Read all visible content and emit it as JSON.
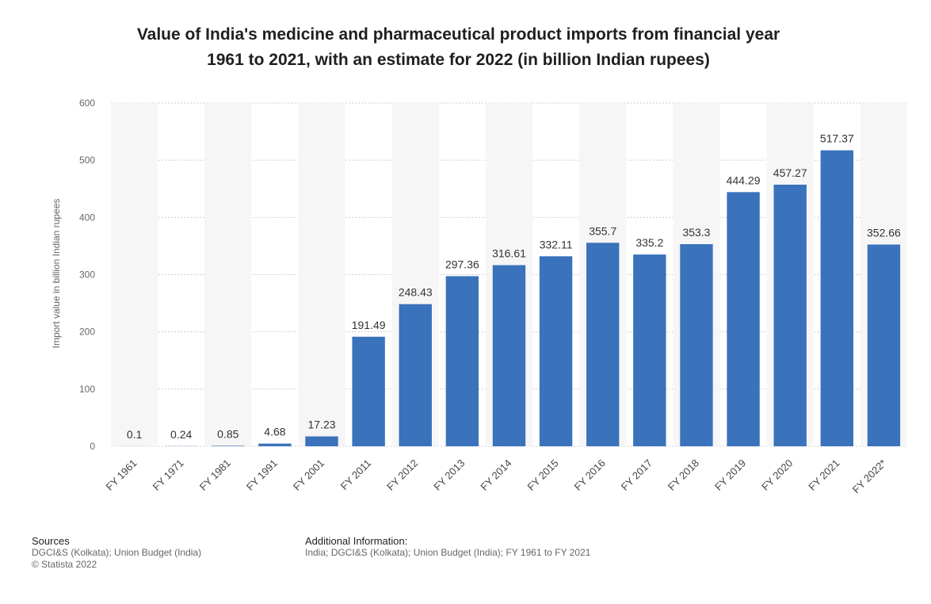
{
  "title_line1": "Value of India's medicine and pharmaceutical product imports from financial year",
  "title_line2": "1961 to 2021, with an estimate for 2022 (in billion Indian rupees)",
  "chart_data": {
    "type": "bar",
    "ylabel": "Import value in billion Indian rupees",
    "xlabel": "",
    "ylim": [
      0,
      600
    ],
    "yticks": [
      0,
      100,
      200,
      300,
      400,
      500,
      600
    ],
    "grid": true,
    "categories": [
      "FY 1961",
      "FY 1971",
      "FY 1981",
      "FY 1991",
      "FY 2001",
      "FY 2011",
      "FY 2012",
      "FY 2013",
      "FY 2014",
      "FY 2015",
      "FY 2016",
      "FY 2017",
      "FY 2018",
      "FY 2019",
      "FY 2020",
      "FY 2021",
      "FY 2022*"
    ],
    "values": [
      0.1,
      0.24,
      0.85,
      4.68,
      17.23,
      191.49,
      248.43,
      297.36,
      316.61,
      332.11,
      355.7,
      335.2,
      353.3,
      444.29,
      457.27,
      517.37,
      352.66
    ],
    "value_labels": [
      "0.1",
      "0.24",
      "0.85",
      "4.68",
      "17.23",
      "191.49",
      "248.43",
      "297.36",
      "316.61",
      "332.11",
      "355.7",
      "335.2",
      "353.3",
      "444.29",
      "457.27",
      "517.37",
      "352.66"
    ],
    "bar_color": "#3a72bb"
  },
  "footer": {
    "sources_heading": "Sources",
    "sources_line1": "DGCI&S (Kolkata); Union Budget (India)",
    "sources_line2": "© Statista 2022",
    "additional_heading": "Additional Information:",
    "additional_text": "India; DGCI&S (Kolkata); Union Budget (India); FY 1961 to FY 2021"
  }
}
